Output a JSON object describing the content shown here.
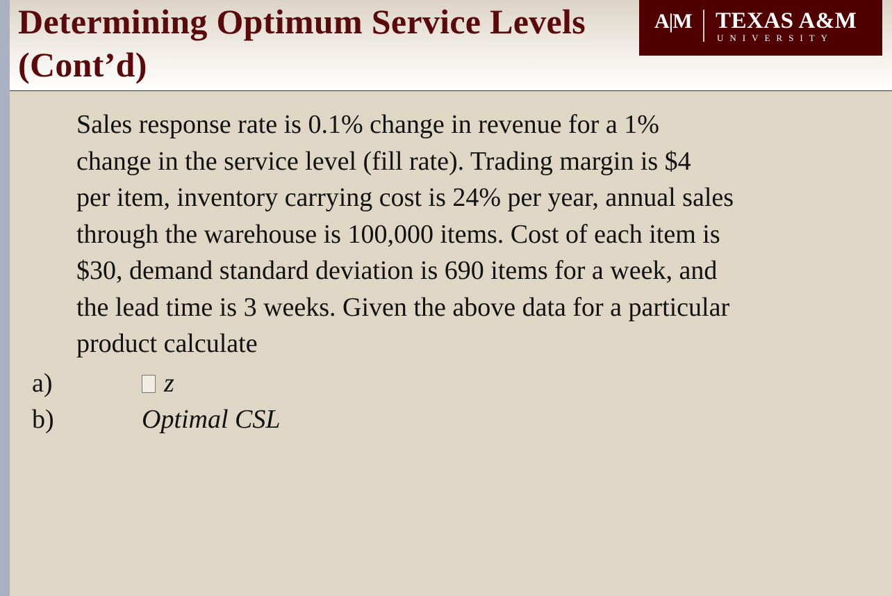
{
  "header": {
    "title_line1": "Determining Optimum Service Levels",
    "title_line2": "(Cont’d)",
    "logo": {
      "mark": "A|M",
      "name": "TEXAS A&M",
      "subtitle": "UNIVERSITY"
    }
  },
  "body": {
    "lines": [
      "Sales response rate is 0.1% change in revenue  for a 1%",
      "change in the service level  (fill rate). Trading margin is $4",
      "per item, inventory carrying cost is 24% per year, annual sales",
      "through the warehouse is 100,000 items. Cost of each item is",
      "$30, demand standard deviation is 690 items for a week, and",
      "the lead time is 3 weeks. Given the above data for a particular",
      "product calculate"
    ],
    "items": [
      {
        "label": "a)",
        "text": "z"
      },
      {
        "label": "b)",
        "text": "Optimal CSL"
      }
    ]
  },
  "colors": {
    "maroon": "#500000",
    "title": "#5a0a0a",
    "background": "#e0d6c6"
  }
}
